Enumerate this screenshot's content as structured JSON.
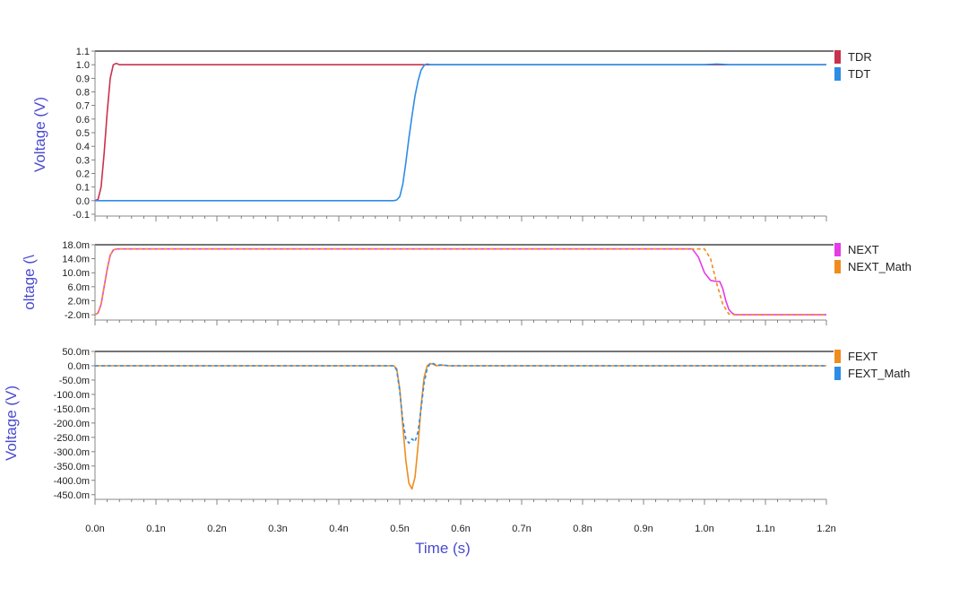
{
  "chart_data": [
    {
      "type": "line",
      "panel": "top",
      "ylabel": "Voltage (V)",
      "xlim": [
        0.0,
        1.2
      ],
      "ylim": [
        -0.1,
        1.1
      ],
      "yticks": [
        1.1,
        1.0,
        0.9,
        0.8,
        0.7,
        0.6,
        0.5,
        0.4,
        0.3,
        0.2,
        0.1,
        0.0,
        -0.1
      ],
      "ytick_labels": [
        "1.1",
        "1.0",
        "0.9",
        "0.8",
        "0.7",
        "0.6",
        "0.5",
        "0.4",
        "0.3",
        "0.2",
        "0.1",
        "0.0",
        "-0.1"
      ],
      "legend_position": "right",
      "series": [
        {
          "name": "TDR",
          "color": "#c8324e",
          "dash": false,
          "x": [
            0.0,
            0.005,
            0.01,
            0.015,
            0.02,
            0.025,
            0.03,
            0.035,
            0.04,
            0.1,
            0.5,
            0.52,
            0.53,
            0.54,
            1.2
          ],
          "y": [
            0.0,
            0.01,
            0.1,
            0.35,
            0.65,
            0.9,
            1.0,
            1.01,
            1.0,
            1.0,
            1.0,
            1.0,
            1.0,
            1.0,
            1.0
          ]
        },
        {
          "name": "TDT",
          "color": "#2d8ce6",
          "dash": false,
          "x": [
            0.0,
            0.49,
            0.495,
            0.5,
            0.505,
            0.51,
            0.515,
            0.52,
            0.525,
            0.53,
            0.535,
            0.54,
            0.545,
            0.55,
            0.56,
            1.0,
            1.02,
            1.04,
            1.2
          ],
          "y": [
            0.0,
            0.0,
            0.005,
            0.03,
            0.12,
            0.28,
            0.46,
            0.62,
            0.77,
            0.88,
            0.96,
            0.995,
            1.005,
            1.0,
            1.0,
            1.0,
            1.005,
            1.0,
            1.0
          ]
        }
      ]
    },
    {
      "type": "line",
      "panel": "middle",
      "ylabel": "oltage (\\",
      "xlim": [
        0.0,
        1.2
      ],
      "ylim": [
        -3.0,
        18.0
      ],
      "yticks": [
        18.0,
        14.0,
        10.0,
        6.0,
        2.0,
        -2.0
      ],
      "ytick_labels": [
        "18.0m",
        "14.0m",
        "10.0m",
        "6.0m",
        "2.0m",
        "-2.0m"
      ],
      "legend_position": "right",
      "series": [
        {
          "name": "NEXT",
          "color": "#e63ce6",
          "dash": false,
          "x": [
            0.0,
            0.005,
            0.01,
            0.015,
            0.02,
            0.025,
            0.03,
            0.035,
            0.04,
            0.98,
            0.99,
            1.0,
            1.01,
            1.02,
            1.025,
            1.03,
            1.035,
            1.04,
            1.045,
            1.05,
            1.2
          ],
          "y": [
            -2.0,
            -1.5,
            1.0,
            6.0,
            11.0,
            15.0,
            16.5,
            16.8,
            16.8,
            16.8,
            14.5,
            10.0,
            7.8,
            7.5,
            7.5,
            5.5,
            2.0,
            -0.5,
            -1.5,
            -2.0,
            -2.0
          ]
        },
        {
          "name": "NEXT_Math",
          "color": "#f08c1e",
          "dash": true,
          "x": [
            0.0,
            0.005,
            0.01,
            0.015,
            0.02,
            0.025,
            0.03,
            0.035,
            0.04,
            0.995,
            1.0,
            1.01,
            1.02,
            1.03,
            1.04,
            1.05,
            1.2
          ],
          "y": [
            -2.0,
            -1.5,
            1.0,
            6.0,
            11.0,
            15.0,
            16.5,
            16.8,
            16.8,
            16.8,
            16.8,
            14.0,
            7.0,
            1.0,
            -1.8,
            -2.0,
            -2.0
          ]
        }
      ]
    },
    {
      "type": "line",
      "panel": "bottom",
      "ylabel": "Voltage (V)",
      "xlabel": "Time (s)",
      "xlim": [
        0.0,
        1.2
      ],
      "ylim": [
        -460.0,
        50.0
      ],
      "yticks": [
        50,
        0,
        -50,
        -100,
        -150,
        -200,
        -250,
        -300,
        -350,
        -400,
        -450
      ],
      "ytick_labels": [
        "50.0m",
        "0.0m",
        "-50.0m",
        "-100.0m",
        "-150.0m",
        "-200.0m",
        "-250.0m",
        "-300.0m",
        "-350.0m",
        "-400.0m",
        "-450.0m"
      ],
      "xticks": [
        0.0,
        0.1,
        0.2,
        0.3,
        0.4,
        0.5,
        0.6,
        0.7,
        0.8,
        0.9,
        1.0,
        1.1,
        1.2
      ],
      "xtick_labels": [
        "0.0n",
        "0.1n",
        "0.2n",
        "0.3n",
        "0.4n",
        "0.5n",
        "0.6n",
        "0.7n",
        "0.8n",
        "0.9n",
        "1.0n",
        "1.1n",
        "1.2n"
      ],
      "legend_position": "right",
      "series": [
        {
          "name": "FEXT",
          "color": "#f08c1e",
          "dash": false,
          "x": [
            0.0,
            0.49,
            0.495,
            0.5,
            0.505,
            0.51,
            0.515,
            0.52,
            0.525,
            0.53,
            0.535,
            0.54,
            0.545,
            0.55,
            0.555,
            0.56,
            0.57,
            0.58,
            1.2
          ],
          "y": [
            0,
            0,
            -10,
            -80,
            -210,
            -330,
            -410,
            -430,
            -390,
            -280,
            -140,
            -40,
            0,
            8,
            5,
            0,
            2,
            0,
            0
          ]
        },
        {
          "name": "FEXT_Math",
          "color": "#2d8ce6",
          "dash": true,
          "x": [
            0.0,
            0.49,
            0.495,
            0.5,
            0.505,
            0.51,
            0.515,
            0.52,
            0.525,
            0.53,
            0.535,
            0.54,
            0.545,
            0.55,
            0.555,
            0.56,
            0.57,
            0.58,
            1.2
          ],
          "y": [
            0,
            0,
            -15,
            -90,
            -190,
            -255,
            -270,
            -255,
            -265,
            -230,
            -150,
            -60,
            -10,
            8,
            8,
            2,
            3,
            0,
            0
          ]
        }
      ]
    }
  ]
}
